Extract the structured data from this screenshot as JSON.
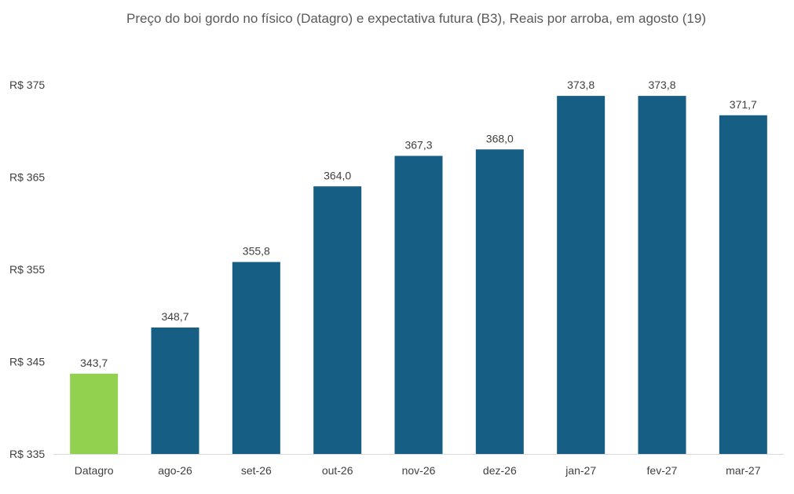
{
  "chart_data": {
    "type": "bar",
    "title": "Preço do boi gordo no físico (Datagro)  e expectativa futura (B3), Reais por arroba, em agosto (19)",
    "xlabel": "",
    "ylabel": "",
    "categories": [
      "Datagro",
      "ago-26",
      "set-26",
      "out-26",
      "nov-26",
      "dez-26",
      "jan-27",
      "fev-27",
      "mar-27"
    ],
    "values": [
      343.7,
      348.7,
      355.8,
      364.0,
      367.3,
      368.0,
      373.8,
      373.8,
      371.7
    ],
    "data_labels": [
      "343,7",
      "348,7",
      "355,8",
      "364,0",
      "367,3",
      "368,0",
      "373,8",
      "373,8",
      "371,7"
    ],
    "ylim": [
      335,
      375
    ],
    "yticks": [
      335,
      345,
      355,
      365,
      375
    ],
    "ytick_labels": [
      "R$ 335",
      "R$ 345",
      "R$ 355",
      "R$ 365",
      "R$ 375"
    ],
    "grid": false,
    "legend": "none",
    "colors": {
      "first_bar": "#92D050",
      "bars": "#165E83",
      "text": "#404040",
      "title": "#595959",
      "axis": "#D9D9D9"
    }
  }
}
